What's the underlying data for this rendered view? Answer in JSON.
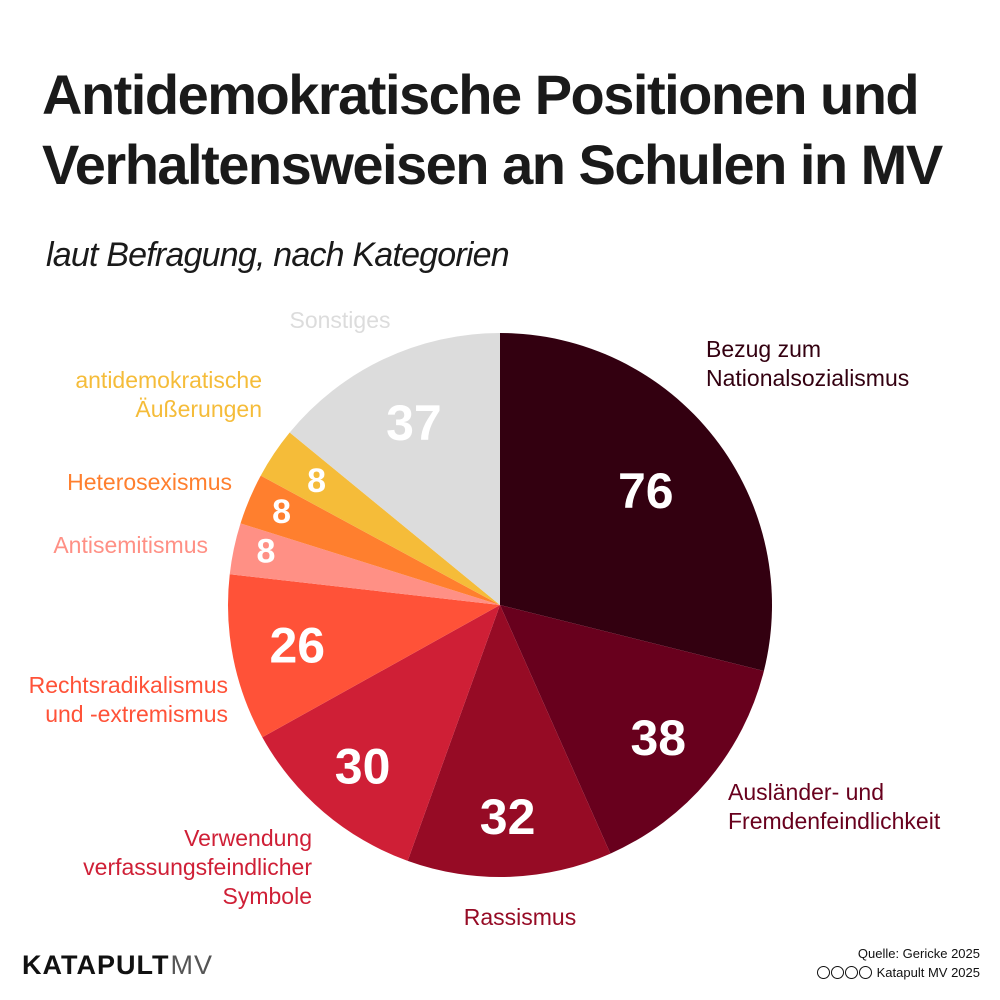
{
  "title": "Antidemokratische Positionen und Verhaltensweisen an Schulen in MV",
  "subtitle": "laut Befragung, nach Kategorien",
  "brand": {
    "main": "KATAPULT",
    "sub": "MV"
  },
  "source": "Quelle: Gericke 2025",
  "license": "Katapult MV 2025",
  "license_icons": [
    "cc-icon",
    "by-icon",
    "nc-icon",
    "nd-icon"
  ],
  "chart_data": {
    "type": "pie",
    "title": "Antidemokratische Positionen und Verhaltensweisen an Schulen in MV",
    "subtitle": "laut Befragung, nach Kategorien",
    "start": "12 o'clock",
    "direction": "clockwise",
    "slices": [
      {
        "label": "Bezug zum Nationalsozialismus",
        "label_lines": [
          "Bezug zum",
          "Nationalsozialismus"
        ],
        "value": 76,
        "color": "#330010"
      },
      {
        "label": "Ausländer- und Fremdenfeindlichkeit",
        "label_lines": [
          "Ausländer- und",
          "Fremdenfeindlichkeit"
        ],
        "value": 38,
        "color": "#68001d"
      },
      {
        "label": "Rassismus",
        "label_lines": [
          "Rassismus"
        ],
        "value": 32,
        "color": "#960b25"
      },
      {
        "label": "Verwendung verfassungsfeindlicher Symbole",
        "label_lines": [
          "Verwendung",
          "verfassungsfeindlicher",
          "Symbole"
        ],
        "value": 30,
        "color": "#cf1f36"
      },
      {
        "label": "Rechtsradikalismus und -extremismus",
        "label_lines": [
          "Rechtsradikalismus",
          "und -extremismus"
        ],
        "value": 26,
        "color": "#ff5238"
      },
      {
        "label": "Antisemitismus",
        "label_lines": [
          "Antisemitismus"
        ],
        "value": 8,
        "color": "#ff9085"
      },
      {
        "label": "Heterosexismus",
        "label_lines": [
          "Heterosexismus"
        ],
        "value": 8,
        "color": "#ff7f2e"
      },
      {
        "label": "antidemokratische Äußerungen",
        "label_lines": [
          "antidemokratische",
          "Äußerungen"
        ],
        "value": 8,
        "color": "#f5bc39"
      },
      {
        "label": "Sonstiges",
        "label_lines": [
          "Sonstiges"
        ],
        "value": 37,
        "color": "#dcdcdc"
      }
    ],
    "label_colors": [
      "#330010",
      "#68001d",
      "#960b25",
      "#cf1f36",
      "#ff5238",
      "#ff9085",
      "#ff7f2e",
      "#f5bc39",
      "#dcdcdc"
    ]
  }
}
